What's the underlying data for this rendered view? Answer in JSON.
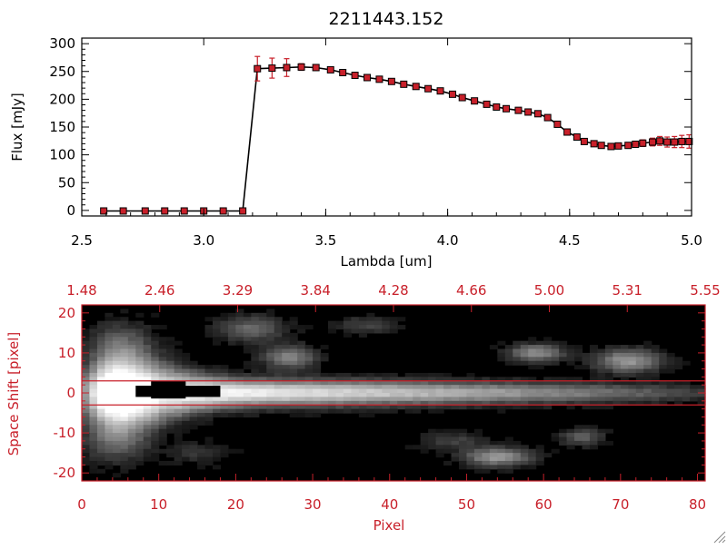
{
  "chart_data": [
    {
      "type": "line",
      "title": "2211443.152",
      "xlabel": "Lambda [um]",
      "ylabel": "Flux [mJy]",
      "xlim": [
        2.5,
        5.0
      ],
      "ylim": [
        -10,
        310
      ],
      "x_ticks": [
        "2.5",
        "3.0",
        "3.5",
        "4.0",
        "4.5",
        "5.0"
      ],
      "y_ticks": [
        "0",
        "50",
        "100",
        "150",
        "200",
        "250",
        "300"
      ],
      "line_color": "#000000",
      "marker_color": "#c8202a",
      "series": [
        {
          "x": [
            2.59,
            2.67,
            2.76,
            2.84,
            2.92,
            3.0,
            3.08,
            3.16,
            3.22,
            3.28,
            3.34,
            3.4,
            3.46,
            3.52,
            3.57,
            3.62,
            3.67,
            3.72,
            3.77,
            3.82,
            3.87,
            3.92,
            3.97,
            4.02,
            4.06,
            4.11,
            4.16,
            4.2,
            4.24,
            4.29,
            4.33,
            4.37,
            4.41,
            4.45,
            4.49,
            4.53,
            4.56,
            4.6,
            4.63,
            4.67,
            4.7,
            4.74,
            4.77,
            4.8,
            4.84,
            4.87,
            4.9,
            4.93,
            4.96,
            4.99
          ],
          "y": [
            -1,
            -1,
            -1,
            -1,
            -1,
            -1,
            -1,
            -1,
            255,
            256,
            257,
            258,
            257,
            253,
            248,
            243,
            239,
            236,
            232,
            227,
            223,
            219,
            215,
            209,
            203,
            197,
            191,
            186,
            183,
            180,
            177,
            174,
            167,
            155,
            141,
            132,
            124,
            120,
            117,
            115,
            116,
            117,
            119,
            121,
            123,
            125,
            123,
            123,
            124,
            124
          ],
          "yerr": [
            0,
            0,
            0,
            0,
            0,
            0,
            0,
            0,
            22,
            18,
            16,
            6,
            4,
            3,
            3,
            3,
            3,
            3,
            3,
            3,
            3,
            3,
            3,
            3,
            3,
            3,
            3,
            3,
            3,
            3,
            3,
            3,
            3,
            3,
            3,
            3,
            3,
            3,
            3,
            4,
            4,
            4,
            5,
            6,
            7,
            8,
            9,
            10,
            11,
            12
          ]
        }
      ]
    },
    {
      "type": "heatmap",
      "xlabel": "Pixel",
      "ylabel": "Space Shift [pixel]",
      "xlim": [
        0,
        81
      ],
      "ylim": [
        -22,
        22
      ],
      "x_ticks": [
        "0",
        "10",
        "20",
        "30",
        "40",
        "50",
        "60",
        "70",
        "80"
      ],
      "y_ticks": [
        "-20",
        "-10",
        "0",
        "10",
        "20"
      ],
      "top_ticks": [
        "1.48",
        "2.46",
        "3.29",
        "3.84",
        "4.28",
        "4.66",
        "5.00",
        "5.31",
        "5.55"
      ],
      "extraction_lines": [
        3,
        -3
      ],
      "axis_color": "#c8202a",
      "colormap": "grayscale"
    }
  ]
}
